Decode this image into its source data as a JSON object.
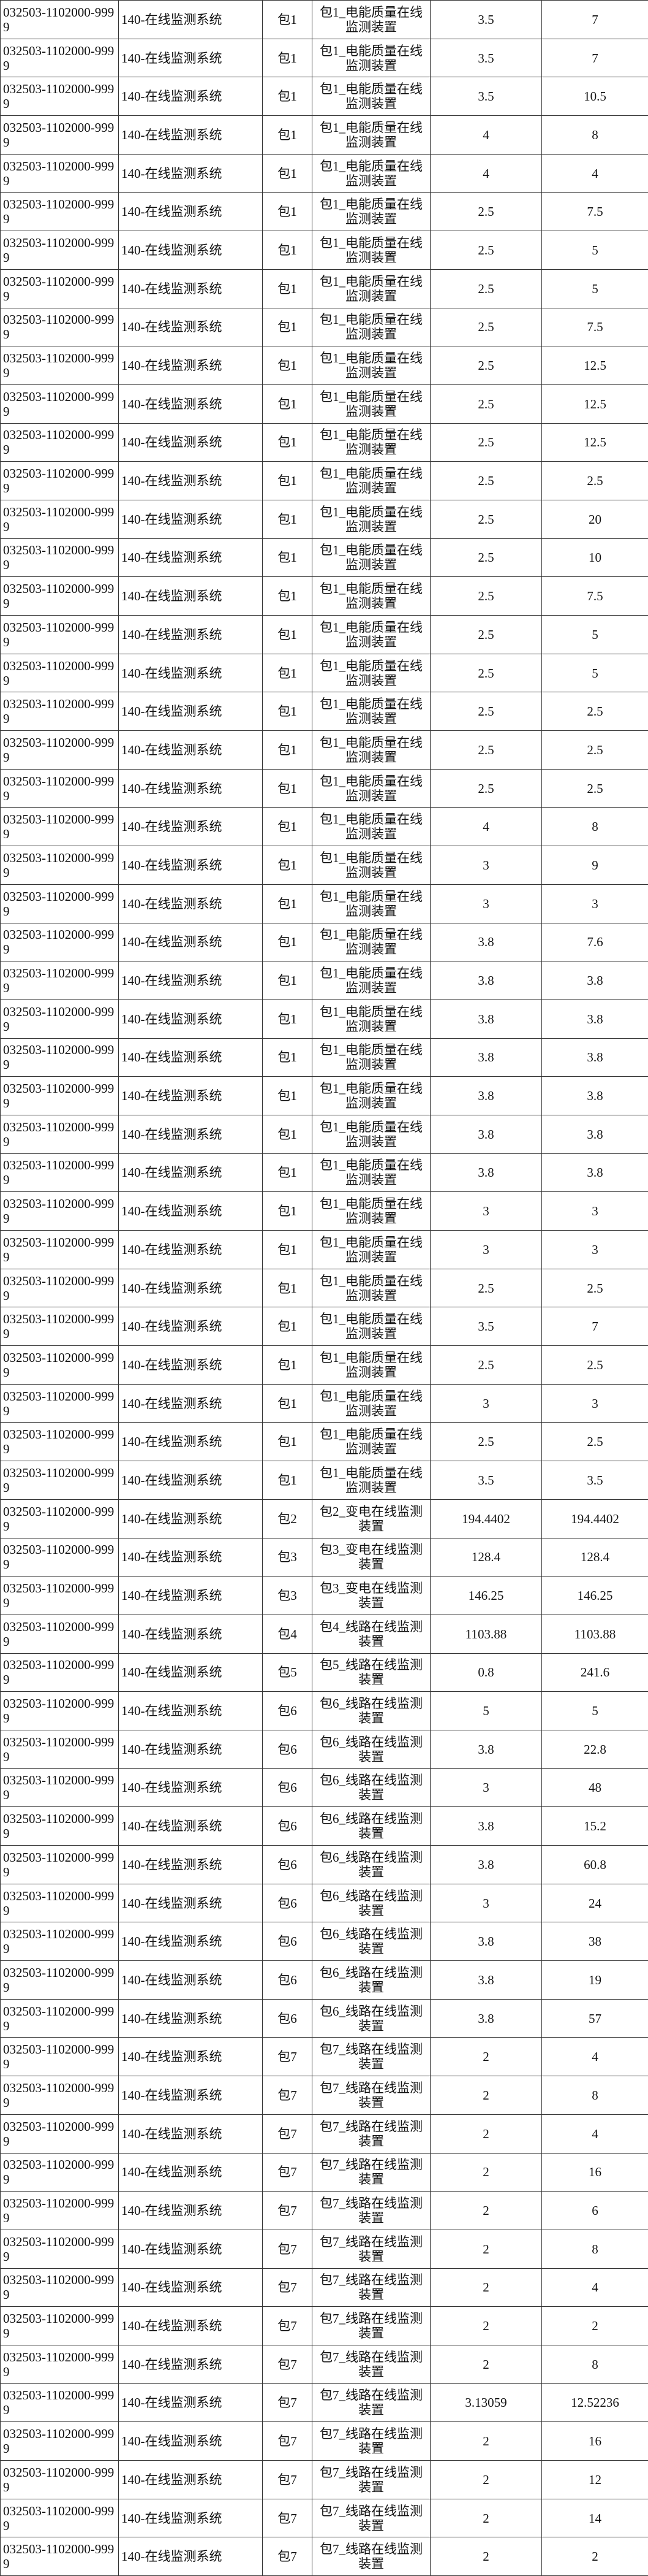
{
  "table": {
    "rows": [
      [
        "032503-1102000-9999",
        "140-在线监测系统",
        "包1",
        "包1_电能质量在线监测装置",
        "3.5",
        "7"
      ],
      [
        "032503-1102000-9999",
        "140-在线监测系统",
        "包1",
        "包1_电能质量在线监测装置",
        "3.5",
        "7"
      ],
      [
        "032503-1102000-9999",
        "140-在线监测系统",
        "包1",
        "包1_电能质量在线监测装置",
        "3.5",
        "10.5"
      ],
      [
        "032503-1102000-9999",
        "140-在线监测系统",
        "包1",
        "包1_电能质量在线监测装置",
        "4",
        "8"
      ],
      [
        "032503-1102000-9999",
        "140-在线监测系统",
        "包1",
        "包1_电能质量在线监测装置",
        "4",
        "4"
      ],
      [
        "032503-1102000-9999",
        "140-在线监测系统",
        "包1",
        "包1_电能质量在线监测装置",
        "2.5",
        "7.5"
      ],
      [
        "032503-1102000-9999",
        "140-在线监测系统",
        "包1",
        "包1_电能质量在线监测装置",
        "2.5",
        "5"
      ],
      [
        "032503-1102000-9999",
        "140-在线监测系统",
        "包1",
        "包1_电能质量在线监测装置",
        "2.5",
        "5"
      ],
      [
        "032503-1102000-9999",
        "140-在线监测系统",
        "包1",
        "包1_电能质量在线监测装置",
        "2.5",
        "7.5"
      ],
      [
        "032503-1102000-9999",
        "140-在线监测系统",
        "包1",
        "包1_电能质量在线监测装置",
        "2.5",
        "12.5"
      ],
      [
        "032503-1102000-9999",
        "140-在线监测系统",
        "包1",
        "包1_电能质量在线监测装置",
        "2.5",
        "12.5"
      ],
      [
        "032503-1102000-9999",
        "140-在线监测系统",
        "包1",
        "包1_电能质量在线监测装置",
        "2.5",
        "12.5"
      ],
      [
        "032503-1102000-9999",
        "140-在线监测系统",
        "包1",
        "包1_电能质量在线监测装置",
        "2.5",
        "2.5"
      ],
      [
        "032503-1102000-9999",
        "140-在线监测系统",
        "包1",
        "包1_电能质量在线监测装置",
        "2.5",
        "20"
      ],
      [
        "032503-1102000-9999",
        "140-在线监测系统",
        "包1",
        "包1_电能质量在线监测装置",
        "2.5",
        "10"
      ],
      [
        "032503-1102000-9999",
        "140-在线监测系统",
        "包1",
        "包1_电能质量在线监测装置",
        "2.5",
        "7.5"
      ],
      [
        "032503-1102000-9999",
        "140-在线监测系统",
        "包1",
        "包1_电能质量在线监测装置",
        "2.5",
        "5"
      ],
      [
        "032503-1102000-9999",
        "140-在线监测系统",
        "包1",
        "包1_电能质量在线监测装置",
        "2.5",
        "5"
      ],
      [
        "032503-1102000-9999",
        "140-在线监测系统",
        "包1",
        "包1_电能质量在线监测装置",
        "2.5",
        "2.5"
      ],
      [
        "032503-1102000-9999",
        "140-在线监测系统",
        "包1",
        "包1_电能质量在线监测装置",
        "2.5",
        "2.5"
      ],
      [
        "032503-1102000-9999",
        "140-在线监测系统",
        "包1",
        "包1_电能质量在线监测装置",
        "2.5",
        "2.5"
      ],
      [
        "032503-1102000-9999",
        "140-在线监测系统",
        "包1",
        "包1_电能质量在线监测装置",
        "4",
        "8"
      ],
      [
        "032503-1102000-9999",
        "140-在线监测系统",
        "包1",
        "包1_电能质量在线监测装置",
        "3",
        "9"
      ],
      [
        "032503-1102000-9999",
        "140-在线监测系统",
        "包1",
        "包1_电能质量在线监测装置",
        "3",
        "3"
      ],
      [
        "032503-1102000-9999",
        "140-在线监测系统",
        "包1",
        "包1_电能质量在线监测装置",
        "3.8",
        "7.6"
      ],
      [
        "032503-1102000-9999",
        "140-在线监测系统",
        "包1",
        "包1_电能质量在线监测装置",
        "3.8",
        "3.8"
      ],
      [
        "032503-1102000-9999",
        "140-在线监测系统",
        "包1",
        "包1_电能质量在线监测装置",
        "3.8",
        "3.8"
      ],
      [
        "032503-1102000-9999",
        "140-在线监测系统",
        "包1",
        "包1_电能质量在线监测装置",
        "3.8",
        "3.8"
      ],
      [
        "032503-1102000-9999",
        "140-在线监测系统",
        "包1",
        "包1_电能质量在线监测装置",
        "3.8",
        "3.8"
      ],
      [
        "032503-1102000-9999",
        "140-在线监测系统",
        "包1",
        "包1_电能质量在线监测装置",
        "3.8",
        "3.8"
      ],
      [
        "032503-1102000-9999",
        "140-在线监测系统",
        "包1",
        "包1_电能质量在线监测装置",
        "3.8",
        "3.8"
      ],
      [
        "032503-1102000-9999",
        "140-在线监测系统",
        "包1",
        "包1_电能质量在线监测装置",
        "3",
        "3"
      ],
      [
        "032503-1102000-9999",
        "140-在线监测系统",
        "包1",
        "包1_电能质量在线监测装置",
        "3",
        "3"
      ],
      [
        "032503-1102000-9999",
        "140-在线监测系统",
        "包1",
        "包1_电能质量在线监测装置",
        "2.5",
        "2.5"
      ],
      [
        "032503-1102000-9999",
        "140-在线监测系统",
        "包1",
        "包1_电能质量在线监测装置",
        "3.5",
        "7"
      ],
      [
        "032503-1102000-9999",
        "140-在线监测系统",
        "包1",
        "包1_电能质量在线监测装置",
        "2.5",
        "2.5"
      ],
      [
        "032503-1102000-9999",
        "140-在线监测系统",
        "包1",
        "包1_电能质量在线监测装置",
        "3",
        "3"
      ],
      [
        "032503-1102000-9999",
        "140-在线监测系统",
        "包1",
        "包1_电能质量在线监测装置",
        "2.5",
        "2.5"
      ],
      [
        "032503-1102000-9999",
        "140-在线监测系统",
        "包1",
        "包1_电能质量在线监测装置",
        "3.5",
        "3.5"
      ],
      [
        "032503-1102000-9999",
        "140-在线监测系统",
        "包2",
        "包2_变电在线监测装置",
        "194.4402",
        "194.4402"
      ],
      [
        "032503-1102000-9999",
        "140-在线监测系统",
        "包3",
        "包3_变电在线监测装置",
        "128.4",
        "128.4"
      ],
      [
        "032503-1102000-9999",
        "140-在线监测系统",
        "包3",
        "包3_变电在线监测装置",
        "146.25",
        "146.25"
      ],
      [
        "032503-1102000-9999",
        "140-在线监测系统",
        "包4",
        "包4_线路在线监测装置",
        "1103.88",
        "1103.88"
      ],
      [
        "032503-1102000-9999",
        "140-在线监测系统",
        "包5",
        "包5_线路在线监测装置",
        "0.8",
        "241.6"
      ],
      [
        "032503-1102000-9999",
        "140-在线监测系统",
        "包6",
        "包6_线路在线监测装置",
        "5",
        "5"
      ],
      [
        "032503-1102000-9999",
        "140-在线监测系统",
        "包6",
        "包6_线路在线监测装置",
        "3.8",
        "22.8"
      ],
      [
        "032503-1102000-9999",
        "140-在线监测系统",
        "包6",
        "包6_线路在线监测装置",
        "3",
        "48"
      ],
      [
        "032503-1102000-9999",
        "140-在线监测系统",
        "包6",
        "包6_线路在线监测装置",
        "3.8",
        "15.2"
      ],
      [
        "032503-1102000-9999",
        "140-在线监测系统",
        "包6",
        "包6_线路在线监测装置",
        "3.8",
        "60.8"
      ],
      [
        "032503-1102000-9999",
        "140-在线监测系统",
        "包6",
        "包6_线路在线监测装置",
        "3",
        "24"
      ],
      [
        "032503-1102000-9999",
        "140-在线监测系统",
        "包6",
        "包6_线路在线监测装置",
        "3.8",
        "38"
      ],
      [
        "032503-1102000-9999",
        "140-在线监测系统",
        "包6",
        "包6_线路在线监测装置",
        "3.8",
        "19"
      ],
      [
        "032503-1102000-9999",
        "140-在线监测系统",
        "包6",
        "包6_线路在线监测装置",
        "3.8",
        "57"
      ],
      [
        "032503-1102000-9999",
        "140-在线监测系统",
        "包7",
        "包7_线路在线监测装置",
        "2",
        "4"
      ],
      [
        "032503-1102000-9999",
        "140-在线监测系统",
        "包7",
        "包7_线路在线监测装置",
        "2",
        "8"
      ],
      [
        "032503-1102000-9999",
        "140-在线监测系统",
        "包7",
        "包7_线路在线监测装置",
        "2",
        "4"
      ],
      [
        "032503-1102000-9999",
        "140-在线监测系统",
        "包7",
        "包7_线路在线监测装置",
        "2",
        "16"
      ],
      [
        "032503-1102000-9999",
        "140-在线监测系统",
        "包7",
        "包7_线路在线监测装置",
        "2",
        "6"
      ],
      [
        "032503-1102000-9999",
        "140-在线监测系统",
        "包7",
        "包7_线路在线监测装置",
        "2",
        "8"
      ],
      [
        "032503-1102000-9999",
        "140-在线监测系统",
        "包7",
        "包7_线路在线监测装置",
        "2",
        "4"
      ],
      [
        "032503-1102000-9999",
        "140-在线监测系统",
        "包7",
        "包7_线路在线监测装置",
        "2",
        "2"
      ],
      [
        "032503-1102000-9999",
        "140-在线监测系统",
        "包7",
        "包7_线路在线监测装置",
        "2",
        "8"
      ],
      [
        "032503-1102000-9999",
        "140-在线监测系统",
        "包7",
        "包7_线路在线监测装置",
        "3.13059",
        "12.52236"
      ],
      [
        "032503-1102000-9999",
        "140-在线监测系统",
        "包7",
        "包7_线路在线监测装置",
        "2",
        "16"
      ],
      [
        "032503-1102000-9999",
        "140-在线监测系统",
        "包7",
        "包7_线路在线监测装置",
        "2",
        "12"
      ],
      [
        "032503-1102000-9999",
        "140-在线监测系统",
        "包7",
        "包7_线路在线监测装置",
        "2",
        "14"
      ],
      [
        "032503-1102000-9999",
        "140-在线监测系统",
        "包7",
        "包7_线路在线监测装置",
        "2",
        "2"
      ]
    ]
  }
}
